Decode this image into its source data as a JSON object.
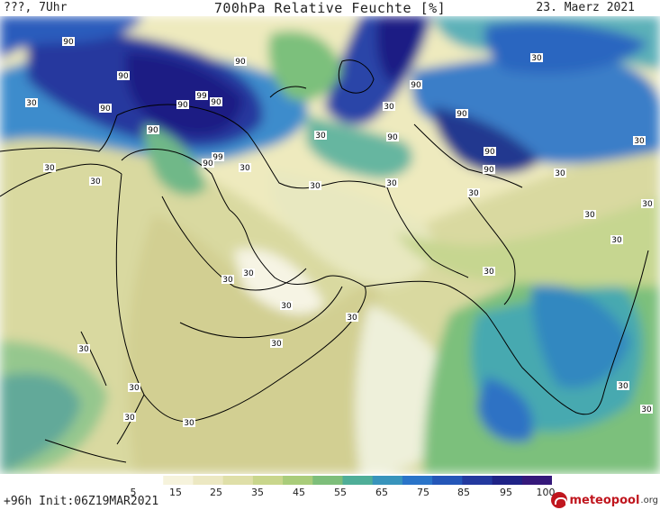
{
  "header": {
    "left": "???, 7Uhr",
    "title": "700hPa Relative Feuchte [%]",
    "date": "23. Maerz 2021"
  },
  "colors": {
    "land_dry": "#f4f0d8",
    "land_mid": "#d9dca0",
    "moist_green": "#8fc773",
    "moist_teal": "#3aa8a8",
    "moist_blue": "#2670c8",
    "saturated": "#20208a"
  },
  "contour_labels": [
    "90",
    "90",
    "90",
    "90",
    "99",
    "90",
    "90",
    "90",
    "99",
    "90",
    "90",
    "90",
    "90",
    "90",
    "90",
    "30",
    "30",
    "30",
    "30",
    "30",
    "30",
    "30",
    "30",
    "30",
    "30",
    "30",
    "30",
    "30",
    "30",
    "30",
    "30",
    "30",
    "30",
    "30",
    "30",
    "30",
    "30",
    "30",
    "30",
    "30",
    "30",
    "30"
  ],
  "legend": {
    "ticks": [
      "5",
      "15",
      "25",
      "35",
      "45",
      "55",
      "65",
      "75",
      "85",
      "95",
      "100"
    ],
    "colors": [
      "#ffffff",
      "#f6f3dc",
      "#ece8c2",
      "#dfdfa8",
      "#c9d68c",
      "#a9cc7a",
      "#7dbe7a",
      "#4fae98",
      "#3894bc",
      "#2a74c8",
      "#2456b8",
      "#23399e",
      "#1f2386",
      "#35187a"
    ]
  },
  "footer": {
    "init": "+96h Init:06Z19MAR2021",
    "logo_main": "meteopool",
    "logo_suffix": ".org"
  }
}
